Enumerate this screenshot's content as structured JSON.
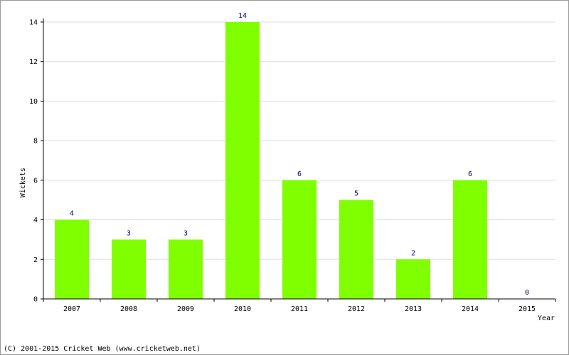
{
  "chart_data": {
    "type": "bar",
    "categories": [
      "2007",
      "2008",
      "2009",
      "2010",
      "2011",
      "2012",
      "2013",
      "2014",
      "2015"
    ],
    "values": [
      4,
      3,
      3,
      14,
      6,
      5,
      2,
      6,
      0
    ],
    "data_labels": [
      "4",
      "3",
      "3",
      "14",
      "6",
      "5",
      "2",
      "6",
      "0"
    ],
    "title": "",
    "xlabel": "Year",
    "ylabel": "Wickets",
    "ylim": [
      0,
      14
    ],
    "yticks": [
      0,
      2,
      4,
      6,
      8,
      10,
      12,
      14
    ],
    "ytick_labels": [
      "0",
      "2",
      "4",
      "6",
      "8",
      "10",
      "12",
      "14"
    ],
    "grid": true,
    "legend": "none",
    "colors": {
      "bar": "#80ff00",
      "grid": "#dddddd",
      "axis": "#000000",
      "data_label": "#000080"
    }
  },
  "footer": {
    "copyright": "(C) 2001-2015 Cricket Web (www.cricketweb.net)"
  }
}
